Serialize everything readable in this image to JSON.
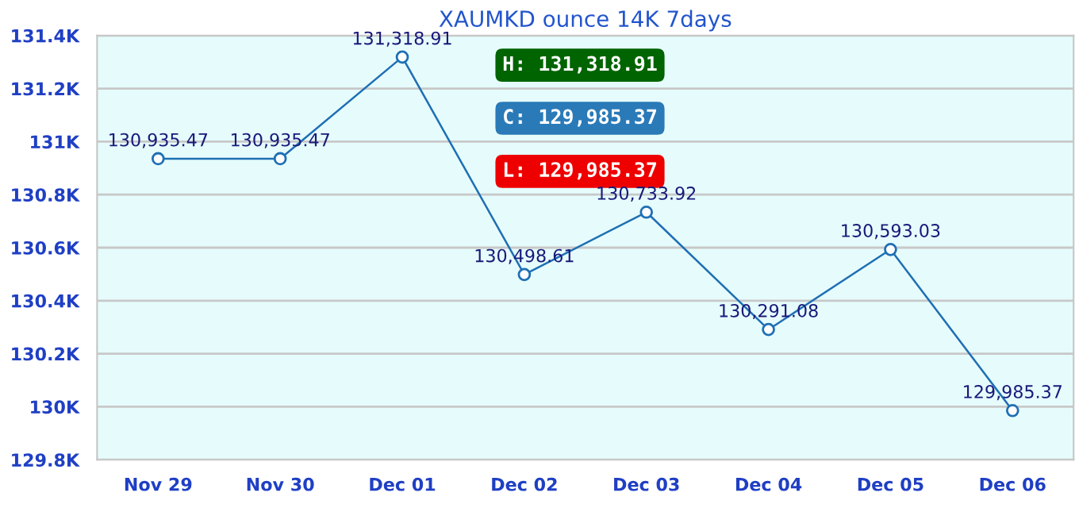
{
  "chart_data": {
    "type": "line",
    "title": "XAUMKD ounce 14K 7days",
    "categories": [
      "Nov 29",
      "Nov 30",
      "Dec 01",
      "Dec 02",
      "Dec 03",
      "Dec 04",
      "Dec 05",
      "Dec 06"
    ],
    "series": [
      {
        "color": "#1f6fb4",
        "values": [
          130935.47,
          130935.47,
          131318.91,
          130498.61,
          130733.92,
          130291.08,
          130593.03,
          129985.37
        ],
        "value_labels": [
          "130,935.47",
          "130,935.47",
          "131,318.91",
          "130,498.61",
          "130,733.92",
          "130,291.08",
          "130,593.03",
          "129,985.37"
        ]
      }
    ],
    "ylim": [
      129800,
      131400
    ],
    "yticks": [
      {
        "value": 129800,
        "label": "129.8K"
      },
      {
        "value": 130000,
        "label": "130K"
      },
      {
        "value": 130200,
        "label": "130.2K"
      },
      {
        "value": 130400,
        "label": "130.4K"
      },
      {
        "value": 130600,
        "label": "130.6K"
      },
      {
        "value": 130800,
        "label": "130.8K"
      },
      {
        "value": 131000,
        "label": "131K"
      },
      {
        "value": 131200,
        "label": "131.2K"
      },
      {
        "value": 131400,
        "label": "131.4K"
      }
    ],
    "annotations": [
      "H: 131,318.91",
      "C: 129,985.37",
      "L: 129,985.37"
    ],
    "grid": "y",
    "marker": "circle",
    "line_style": "solid",
    "legend": false
  }
}
